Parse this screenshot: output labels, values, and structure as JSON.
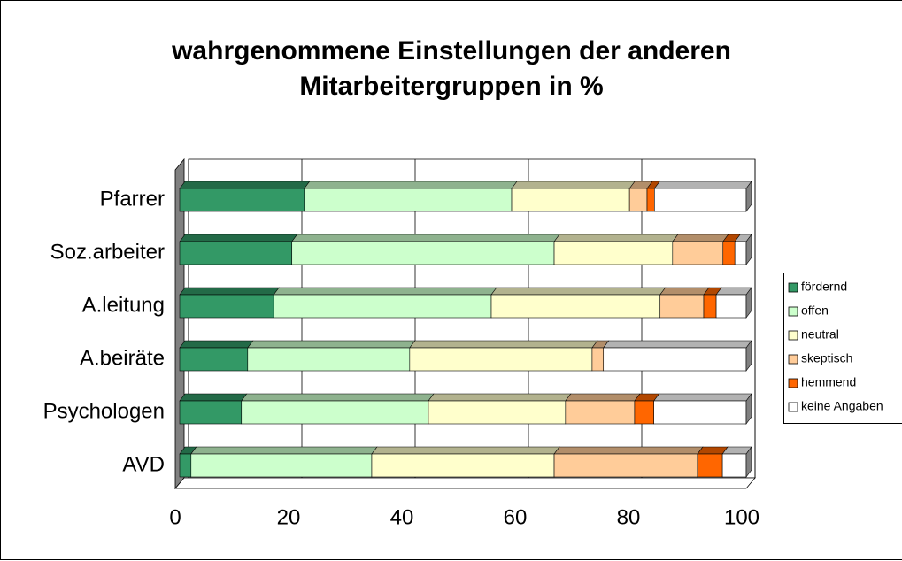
{
  "chart_data": {
    "type": "stacked-bar-horizontal-3d",
    "title": "wahrgenommene Einstellungen der anderen Mitarbeitergruppen in %",
    "categories": [
      "Pfarrer",
      "Soz.arbeiter",
      "A.leitung",
      "A.beiräte",
      "Psychologen",
      "AVD"
    ],
    "series": [
      {
        "name": "fördernd",
        "color": "#339966",
        "values": [
          22,
          19.8,
          16.6,
          12,
          10.9,
          2
        ]
      },
      {
        "name": "offen",
        "color": "#ccffcc",
        "values": [
          36.6,
          46.3,
          38.4,
          28.6,
          33,
          31.9
        ]
      },
      {
        "name": "neutral",
        "color": "#ffffcc",
        "values": [
          20.8,
          20.9,
          29.8,
          32.2,
          24.2,
          32.2
        ]
      },
      {
        "name": "skeptisch",
        "color": "#ffcc99",
        "values": [
          3.1,
          8.9,
          7.7,
          2,
          12.2,
          25.3
        ]
      },
      {
        "name": "hemmend",
        "color": "#ff6600",
        "values": [
          1.3,
          2.1,
          2.2,
          0,
          3.4,
          4.4
        ]
      },
      {
        "name": "keine Angaben",
        "color": "#ffffff",
        "values": [
          16.2,
          2,
          5.3,
          25.2,
          16.3,
          4.2
        ]
      }
    ],
    "xlim": [
      0,
      100
    ],
    "xticks": [
      0,
      20,
      40,
      60,
      80,
      100
    ],
    "grid": true,
    "legend": "right"
  }
}
